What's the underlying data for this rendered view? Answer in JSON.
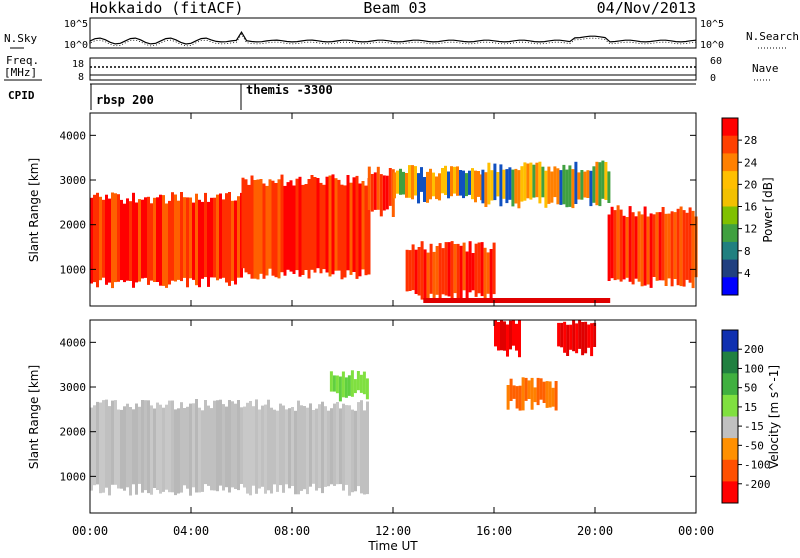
{
  "header": {
    "station": "Hokkaido (fitACF)",
    "beam": "Beam 03",
    "date": "04/Nov/2013"
  },
  "noise_panel": {
    "left_label": "N.Sky",
    "right_label": "N.Search",
    "left_ticks": [
      "10^5",
      "10^0"
    ],
    "right_ticks": [
      "10^5",
      "10^0"
    ]
  },
  "freq_panel": {
    "left_label_1": "Freq.",
    "left_label_2": "[MHz]",
    "right_label": "Nave",
    "left_ticks": [
      "18",
      "8"
    ],
    "right_ticks": [
      "60",
      "0"
    ]
  },
  "cpid_panel": {
    "label": "CPID",
    "programs": [
      "rbsp 200",
      "themis -3300"
    ]
  },
  "power_panel": {
    "ylabel": "Slant Range [km]",
    "colorbar_label": "Power [dB]",
    "colorbar_ticks": [
      "28",
      "24",
      "20",
      "16",
      "12",
      "8",
      "4"
    ],
    "colorbar_colors": [
      "#ff0000",
      "#ff4000",
      "#ff8000",
      "#ffbf00",
      "#f2c000",
      "#80c000",
      "#40a040",
      "#208080",
      "#204080",
      "#0000ff"
    ]
  },
  "velocity_panel": {
    "ylabel": "Slant Range [km]",
    "colorbar_label": "Velocity [m s^-1]",
    "colorbar_ticks": [
      "200",
      "100",
      "50",
      "15",
      "-15",
      "-50",
      "-100",
      "-200"
    ],
    "colorbar_colors": [
      "#1030b0",
      "#208040",
      "#40b040",
      "#80e040",
      "#c0c0c0",
      "#ff9000",
      "#ff5000",
      "#ff0000"
    ]
  },
  "chart_data": {
    "type": "heatmap",
    "title": "Hokkaido (fitACF)  Beam 03  04/Nov/2013",
    "xlabel": "Time UT",
    "x_ticks": [
      "00:00",
      "04:00",
      "08:00",
      "12:00",
      "16:00",
      "20:00",
      "00:00"
    ],
    "xlim_hours": [
      0,
      24
    ],
    "ylabel": "Slant Range [km]",
    "y_ticks": [
      1000,
      2000,
      3000,
      4000
    ],
    "ylim_km": [
      180,
      4500
    ],
    "power_scale_db": [
      0,
      30
    ],
    "velocity_scale_ms": [
      -250,
      250
    ],
    "cpid_changes": [
      {
        "time_h": 0,
        "program": "rbsp 200"
      },
      {
        "time_h": 5.9,
        "program": "themis -3300"
      }
    ],
    "power_regions": [
      {
        "t0": 0.0,
        "t1": 6.0,
        "r0": 700,
        "r1": 2600,
        "level": "high"
      },
      {
        "t0": 6.0,
        "t1": 11.0,
        "r0": 900,
        "r1": 3000,
        "level": "high"
      },
      {
        "t0": 11.0,
        "t1": 12.0,
        "r0": 2300,
        "r1": 3200,
        "level": "high"
      },
      {
        "t0": 12.0,
        "t1": 15.5,
        "r0": 2600,
        "r1": 3200,
        "level": "medium"
      },
      {
        "t0": 12.5,
        "t1": 16.0,
        "r0": 400,
        "r1": 1500,
        "level": "high"
      },
      {
        "t0": 15.5,
        "t1": 20.5,
        "r0": 2500,
        "r1": 3300,
        "level": "medium"
      },
      {
        "t0": 20.5,
        "t1": 24.0,
        "r0": 700,
        "r1": 2300,
        "level": "high"
      }
    ],
    "velocity_regions": [
      {
        "t0": 0.0,
        "t1": 11.0,
        "r0": 700,
        "r1": 2600,
        "v": "ground (-15..15)"
      },
      {
        "t0": 9.5,
        "t1": 11.0,
        "r0": 2800,
        "r1": 3300,
        "v": "15..50"
      },
      {
        "t0": 16.5,
        "t1": 18.5,
        "r0": 2600,
        "r1": 3100,
        "v": "-50..-100"
      },
      {
        "t0": 16.0,
        "t1": 17.0,
        "r0": 3800,
        "r1": 4500,
        "v": "-200"
      },
      {
        "t0": 18.5,
        "t1": 20.0,
        "r0": 3800,
        "r1": 4500,
        "v": "-200"
      }
    ]
  },
  "axes": {
    "xlabel": "Time UT",
    "x_ticks": [
      "00:00",
      "04:00",
      "08:00",
      "12:00",
      "16:00",
      "20:00",
      "00:00"
    ],
    "y_ticks": [
      "1000",
      "2000",
      "3000",
      "4000"
    ]
  }
}
